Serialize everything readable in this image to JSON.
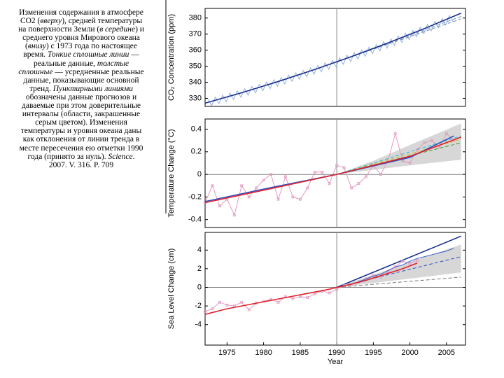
{
  "caption": [
    {
      "text": "Изменения содержания в атмосфере CO2 ("
    },
    {
      "text": "вверху",
      "italic": true
    },
    {
      "text": "), средней температуры на поверхности Земли ("
    },
    {
      "text": "в середине",
      "italic": true
    },
    {
      "text": ") и среднего уровня Мирового океана ("
    },
    {
      "text": "внизу",
      "italic": true
    },
    {
      "text": ") с 1973 года по настоящее время. "
    },
    {
      "text": "Тонкие сплошные линии",
      "italic": true
    },
    {
      "text": " — реальные данные, "
    },
    {
      "text": "толстые сплошные",
      "italic": true
    },
    {
      "text": " — усредненные реальные данные, показывающие основной тренд. "
    },
    {
      "text": "Пунктирными линиями",
      "italic": true
    },
    {
      "text": " обозначены данные прогнозов и даваемые при этом доверительные интервалы (области, закрашенные серым цветом). Изменения температуры и уровня океана даны как отклонения от линии тренда в месте пересечения ею отметки 1990 года (принято за нуль). "
    },
    {
      "text": "Science",
      "italic": true
    },
    {
      "text": ". 2007. V. 316. P. 709"
    }
  ],
  "chart_data": [
    {
      "type": "line",
      "ylabel": "CO₂ Concentration (ppm)",
      "xlim": [
        1972,
        2007.6
      ],
      "ylim": [
        325,
        386
      ],
      "yticks": [
        330,
        340,
        350,
        360,
        370,
        380
      ],
      "vline": 1990,
      "series": [
        {
          "color": "#8fb0e0",
          "style": "thin",
          "x": [
            1972.4,
            1972.9,
            1973.4,
            1973.9,
            1974.4,
            1974.9,
            1975.4,
            1975.9,
            1976.4,
            1976.9,
            1977.4,
            1977.9,
            1978.4,
            1978.9,
            1979.4,
            1979.9,
            1980.4,
            1980.9,
            1981.4,
            1981.9,
            1982.4,
            1982.9,
            1983.4,
            1983.9,
            1984.4,
            1984.9,
            1985.4,
            1985.9,
            1986.4,
            1986.9,
            1987.4,
            1987.9,
            1988.4,
            1988.9,
            1989.4,
            1989.9,
            1990.4,
            1990.9,
            1991.4,
            1991.9,
            1992.4,
            1992.9,
            1993.4,
            1993.9,
            1994.4,
            1994.9,
            1995.4,
            1995.9,
            1996.4,
            1996.9,
            1997.4,
            1997.9,
            1998.4,
            1998.9,
            1999.4,
            1999.9,
            2000.4,
            2000.9,
            2001.4,
            2001.9,
            2002.4,
            2002.9,
            2003.4,
            2003.9,
            2004.4,
            2004.9,
            2005.4,
            2005.9
          ],
          "values": [
            329.5,
            325.5,
            330.8,
            326.8,
            332.0,
            328.0,
            333.3,
            329.3,
            334.7,
            330.7,
            336.0,
            332.0,
            337.4,
            333.4,
            338.7,
            334.7,
            340.1,
            336.1,
            341.6,
            337.6,
            343.0,
            339.0,
            344.5,
            340.5,
            345.9,
            341.9,
            347.4,
            343.4,
            349.0,
            345.0,
            350.5,
            346.5,
            352.1,
            348.1,
            353.6,
            349.6,
            355.2,
            351.2,
            356.9,
            352.9,
            358.5,
            354.5,
            360.2,
            356.2,
            361.8,
            357.8,
            363.5,
            359.5,
            365.3,
            361.3,
            367.0,
            363.0,
            368.8,
            364.8,
            370.5,
            366.5,
            372.3,
            368.3,
            374.2,
            370.2,
            376.0,
            372.0,
            377.9,
            373.9,
            379.7,
            375.7,
            381.6,
            377.6
          ]
        },
        {
          "color": "#6a86b8",
          "style": "dashed",
          "x": [
            1990,
            2007
          ],
          "values": [
            352.7,
            379.5
          ]
        },
        {
          "color": "#7a94c4",
          "style": "dashed",
          "x": [
            1990,
            2007
          ],
          "values": [
            352.7,
            381.0
          ]
        },
        {
          "color": "#1a2f8a",
          "style": "thick",
          "x": [
            1972,
            1977,
            1982,
            1987,
            1992,
            1997,
            2002,
            2007
          ],
          "values": [
            327.0,
            333.5,
            340.5,
            348.0,
            356.0,
            364.5,
            373.5,
            383.0
          ]
        }
      ]
    },
    {
      "type": "line",
      "ylabel": "Temperature Change (°C)",
      "xlim": [
        1972,
        2007.6
      ],
      "ylim": [
        -0.47,
        0.49
      ],
      "yticks": [
        -0.4,
        -0.2,
        0,
        0.2,
        0.4
      ],
      "vline": 1990,
      "x": [
        1972,
        1973,
        1974,
        1975,
        1976,
        1977,
        1978,
        1979,
        1980,
        1981,
        1982,
        1983,
        1984,
        1985,
        1986,
        1987,
        1988,
        1989,
        1990,
        1991,
        1992,
        1993,
        1994,
        1995,
        1996,
        1997,
        1998,
        1999,
        2000,
        2001,
        2002,
        2003,
        2004,
        2005,
        2006
      ],
      "series": [
        {
          "color": "#d0d0d0",
          "style": "band",
          "x": [
            1990,
            1995,
            2000,
            2007
          ],
          "lower": [
            0,
            0.04,
            0.08,
            0.13
          ],
          "upper": [
            0,
            0.12,
            0.26,
            0.45
          ]
        },
        {
          "color": "#e39ac0",
          "style": "thin",
          "markers": true,
          "values": [
            -0.25,
            -0.1,
            -0.28,
            -0.22,
            -0.36,
            -0.1,
            -0.2,
            -0.12,
            -0.05,
            0.0,
            -0.22,
            -0.02,
            -0.2,
            -0.22,
            -0.12,
            0.02,
            0.02,
            -0.08,
            0.08,
            0.06,
            -0.12,
            -0.08,
            -0.02,
            0.08,
            0.0,
            0.12,
            0.36,
            0.12,
            0.1,
            0.22,
            0.28,
            0.3,
            0.24,
            0.36,
            0.3
          ]
        },
        {
          "color": "#2ca02c",
          "style": "dashed",
          "x": [
            1990,
            2007
          ],
          "values": [
            0,
            0.28
          ]
        },
        {
          "color": "#d4c02a",
          "style": "dashed",
          "x": [
            1990,
            2007
          ],
          "values": [
            0,
            0.31
          ]
        },
        {
          "color": "#2ab8c8",
          "style": "dashed",
          "x": [
            1990,
            2007
          ],
          "values": [
            0,
            0.34
          ]
        },
        {
          "color": "#3050c0",
          "style": "thick",
          "x": [
            1972,
            1980,
            1990,
            2000,
            2006
          ],
          "values": [
            -0.24,
            -0.13,
            0,
            0.15,
            0.34
          ]
        },
        {
          "color": "#e0202a",
          "style": "thick",
          "x": [
            1972,
            1980,
            1990,
            2000,
            2007
          ],
          "values": [
            -0.25,
            -0.14,
            0,
            0.16,
            0.33
          ]
        }
      ]
    },
    {
      "type": "line",
      "ylabel": "Sea Level Change (cm)",
      "xlabel": "Year",
      "xlim": [
        1972,
        2007.6
      ],
      "ylim": [
        -6.2,
        5.9
      ],
      "yticks": [
        -4,
        -2,
        0,
        2,
        4
      ],
      "xticks": [
        1975,
        1980,
        1985,
        1990,
        1995,
        2000,
        2005
      ],
      "vline": 1990,
      "x": [
        1972,
        1973,
        1974,
        1975,
        1976,
        1977,
        1978,
        1979,
        1980,
        1981,
        1982,
        1983,
        1984,
        1985,
        1986,
        1987,
        1988,
        1989,
        1990,
        1991,
        1992,
        1993,
        1994,
        1995,
        1996,
        1997,
        1998,
        1999,
        2000,
        2001
      ],
      "series": [
        {
          "color": "#d0d0d0",
          "style": "band",
          "x": [
            1990,
            2007
          ],
          "lower": [
            0,
            1.6
          ],
          "upper": [
            0,
            4.6
          ]
        },
        {
          "color": "#777777",
          "style": "dashed",
          "x": [
            1990,
            2007
          ],
          "values": [
            0,
            1.1
          ]
        },
        {
          "color": "#3050c0",
          "style": "dashed",
          "x": [
            1990,
            2007
          ],
          "values": [
            0,
            3.3
          ]
        },
        {
          "color": "#1a2f8a",
          "style": "thick",
          "x": [
            1990,
            2007
          ],
          "values": [
            0,
            5.5
          ]
        },
        {
          "color": "#e39ac0",
          "style": "thin",
          "markers": true,
          "values": [
            -2.6,
            -2.3,
            -1.6,
            -1.9,
            -2.0,
            -1.6,
            -2.4,
            -1.7,
            -1.5,
            -1.3,
            -1.6,
            -1.0,
            -1.2,
            -1.0,
            -1.1,
            -0.7,
            -0.4,
            -0.6,
            -0.2,
            0.2,
            0.3,
            0.6,
            0.9,
            1.3,
            1.1,
            1.7,
            2.2,
            2.8,
            2.6,
            2.9
          ]
        },
        {
          "color": "#e0202a",
          "style": "thick",
          "values": [
            -2.9,
            -2.7,
            -2.5,
            -2.3,
            -2.15,
            -2.0,
            -1.85,
            -1.7,
            -1.55,
            -1.4,
            -1.25,
            -1.1,
            -0.95,
            -0.8,
            -0.65,
            -0.5,
            -0.35,
            -0.2,
            0,
            0.15,
            0.35,
            0.55,
            0.75,
            1.0,
            1.25,
            1.5,
            1.75,
            2.0,
            2.3,
            2.6
          ]
        },
        {
          "color": "#4060c8",
          "style": "thin",
          "x": [
            1993,
            1994,
            1995,
            1996,
            1997,
            1998,
            1999,
            2000,
            2001,
            2002,
            2003,
            2004,
            2005,
            2006
          ],
          "values": [
            0.6,
            0.9,
            1.2,
            1.4,
            1.8,
            2.2,
            2.4,
            2.8,
            3.1,
            3.3,
            3.5,
            3.7,
            3.9,
            4.2
          ]
        }
      ]
    }
  ]
}
